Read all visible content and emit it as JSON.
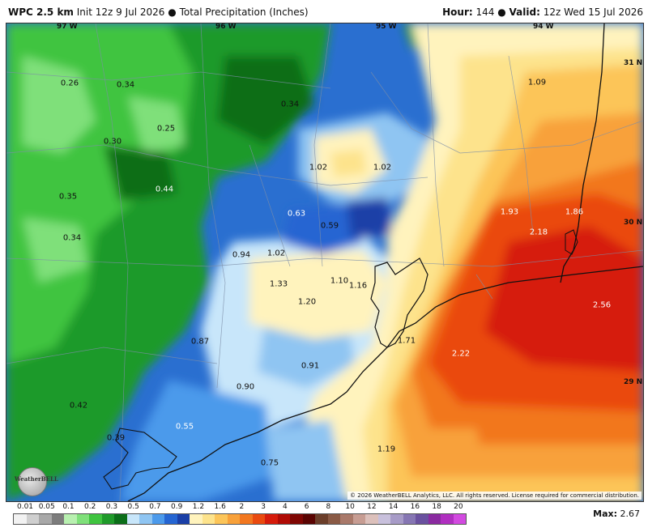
{
  "header": {
    "model": "WPC 2.5 km",
    "init": "Init 12z 9 Jul 2026",
    "field": "Total Precipitation (Inches)",
    "hour_label": "Hour:",
    "hour_value": "144",
    "valid_label": "Valid:",
    "valid_value": "12z Wed 15 Jul 2026"
  },
  "longitudes": [
    "97 W",
    "96 W",
    "95 W",
    "94 W"
  ],
  "latitudes": [
    "31 N",
    "30 N",
    "29 N"
  ],
  "values": [
    {
      "text": "0.26"
    },
    {
      "text": "0.34"
    },
    {
      "text": "0.34"
    },
    {
      "text": "0.25"
    },
    {
      "text": "0.30"
    },
    {
      "text": "0.44"
    },
    {
      "text": "0.35"
    },
    {
      "text": "0.34"
    },
    {
      "text": "1.02"
    },
    {
      "text": "1.02"
    },
    {
      "text": "0.63"
    },
    {
      "text": "0.59"
    },
    {
      "text": "0.94"
    },
    {
      "text": "1.02"
    },
    {
      "text": "1.33"
    },
    {
      "text": "1.10"
    },
    {
      "text": "1.16"
    },
    {
      "text": "1.20"
    },
    {
      "text": "1.09"
    },
    {
      "text": "1.93"
    },
    {
      "text": "1.86"
    },
    {
      "text": "2.18"
    },
    {
      "text": "2.56"
    },
    {
      "text": "1.71"
    },
    {
      "text": "2.22"
    },
    {
      "text": "0.87"
    },
    {
      "text": "0.91"
    },
    {
      "text": "0.90"
    },
    {
      "text": "0.42"
    },
    {
      "text": "0.55"
    },
    {
      "text": "0.39"
    },
    {
      "text": "0.75"
    },
    {
      "text": "1.19"
    }
  ],
  "copyright": "© 2026 WeatherBELL Analytics, LLC. All rights reserved. License required for commercial distribution.",
  "logo_text": "WeatherBELL",
  "legend": {
    "labels": [
      "0.01",
      "0.05",
      "0.1",
      "0.2",
      "0.3",
      "0.5",
      "0.7",
      "0.9",
      "1.2",
      "1.6",
      "2",
      "3",
      "4",
      "6",
      "8",
      "10",
      "12",
      "14",
      "16",
      "18",
      "20"
    ],
    "colors": [
      "#f2f2f2",
      "#cfcfcf",
      "#a8a8a8",
      "#7c7c7c",
      "#b8f0b0",
      "#7fe07a",
      "#3fc43f",
      "#1f9a2a",
      "#0b6e19",
      "#c8e6fa",
      "#8fc5f2",
      "#4c9aeb",
      "#2565d2",
      "#1a3fa7",
      "#fff3bd",
      "#fde38c",
      "#fcc559",
      "#f8a13a",
      "#f2771f",
      "#ea4a0f",
      "#d61b0b",
      "#b00b05",
      "#7f0603",
      "#5a0402",
      "#6b3e2a",
      "#8a5a45",
      "#a9796a",
      "#c79d93",
      "#dcc0bb",
      "#c8c0dc",
      "#a79bc7",
      "#8676b3",
      "#6a519f",
      "#8a2aa0",
      "#b02fc0",
      "#d24ae0"
    ],
    "max_label": "Max:",
    "max_value": "2.67"
  }
}
